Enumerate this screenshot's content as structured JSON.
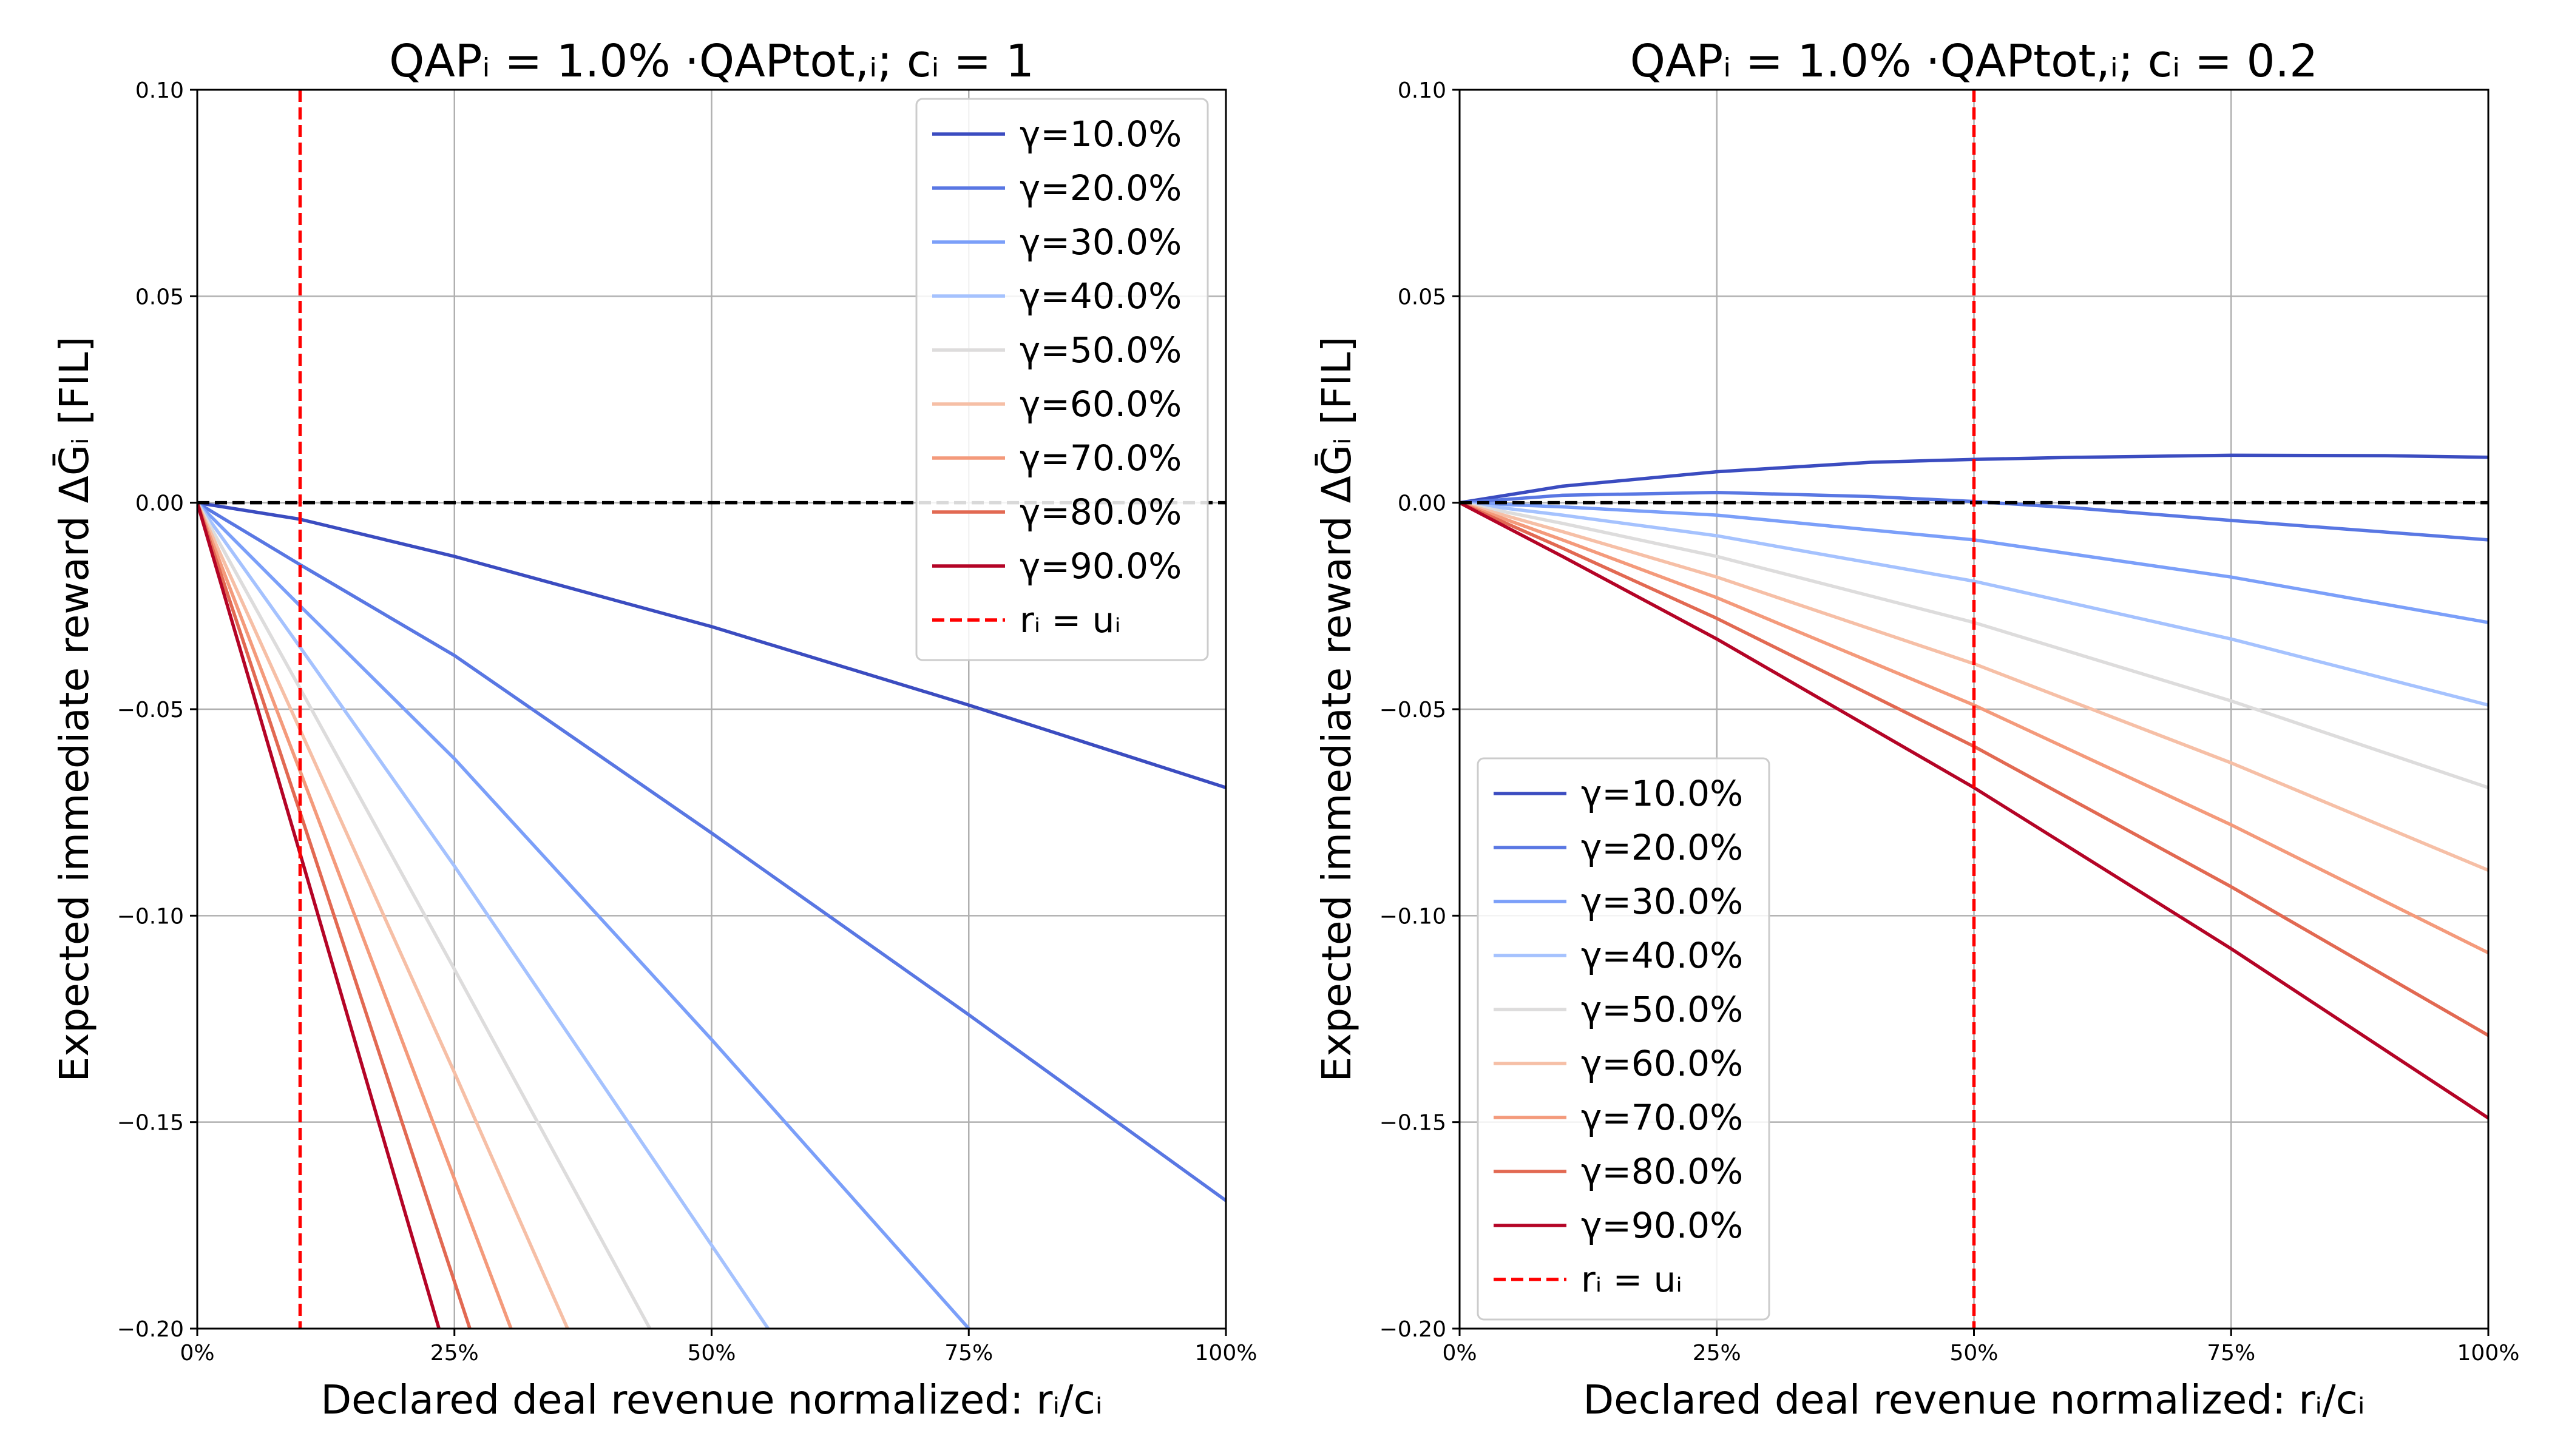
{
  "figure": {
    "background": "#ffffff"
  },
  "chart_data": [
    {
      "type": "line",
      "title": "QAPᵢ = 1.0% ·QAPtot,ᵢ; cᵢ = 1",
      "xlabel": "Declared deal revenue normalized: rᵢ/cᵢ",
      "ylabel": "Expected immediate reward ΔḠᵢ [FIL]",
      "xlim": [
        0,
        100
      ],
      "ylim": [
        -0.2,
        0.1
      ],
      "x_ticks": [
        0,
        25,
        50,
        75,
        100
      ],
      "x_tick_labels": [
        "0%",
        "25%",
        "50%",
        "75%",
        "100%"
      ],
      "y_ticks": [
        -0.2,
        -0.15,
        -0.1,
        -0.05,
        0.0,
        0.05,
        0.1
      ],
      "y_tick_labels": [
        "−0.20",
        "−0.15",
        "−0.10",
        "−0.05",
        "0.00",
        "0.05",
        "0.10"
      ],
      "grid": true,
      "legend_position": "top-right",
      "reference_vertical": {
        "x": 10,
        "label": "rᵢ = uᵢ",
        "color": "#ff0000"
      },
      "reference_horizontal": {
        "y": 0,
        "color": "#000000"
      },
      "series": [
        {
          "name": "γ=10.0%",
          "color": "#3b4cc0",
          "x": [
            0,
            10,
            25,
            50,
            75,
            100
          ],
          "y": [
            0,
            -0.004,
            -0.013,
            -0.03,
            -0.049,
            -0.069
          ]
        },
        {
          "name": "γ=20.0%",
          "color": "#5977e3",
          "x": [
            0,
            10,
            25,
            50,
            75,
            100
          ],
          "y": [
            0,
            -0.015,
            -0.037,
            -0.08,
            -0.124,
            -0.169
          ]
        },
        {
          "name": "γ=30.0%",
          "color": "#7b9ff9",
          "x": [
            0,
            10,
            25,
            50,
            75
          ],
          "y": [
            0,
            -0.025,
            -0.062,
            -0.13,
            -0.2
          ]
        },
        {
          "name": "γ=40.0%",
          "color": "#a5c2fe",
          "x": [
            0,
            10,
            25,
            55.5
          ],
          "y": [
            0,
            -0.035,
            -0.088,
            -0.2
          ]
        },
        {
          "name": "γ=50.0%",
          "color": "#dddcdc",
          "x": [
            0,
            10,
            25,
            44
          ],
          "y": [
            0,
            -0.045,
            -0.113,
            -0.2
          ]
        },
        {
          "name": "γ=60.0%",
          "color": "#f6bfa6",
          "x": [
            0,
            10,
            25,
            36
          ],
          "y": [
            0,
            -0.055,
            -0.138,
            -0.2
          ]
        },
        {
          "name": "γ=70.0%",
          "color": "#f49a7b",
          "x": [
            0,
            10,
            30.5
          ],
          "y": [
            0,
            -0.065,
            -0.2
          ]
        },
        {
          "name": "γ=80.0%",
          "color": "#e26952",
          "x": [
            0,
            10,
            26.5
          ],
          "y": [
            0,
            -0.075,
            -0.2
          ]
        },
        {
          "name": "γ=90.0%",
          "color": "#b40426",
          "x": [
            0,
            10,
            23.5
          ],
          "y": [
            0,
            -0.085,
            -0.2
          ]
        }
      ]
    },
    {
      "type": "line",
      "title": "QAPᵢ = 1.0% ·QAPtot,ᵢ; cᵢ = 0.2",
      "xlabel": "Declared deal revenue normalized: rᵢ/cᵢ",
      "ylabel": "Expected immediate reward ΔḠᵢ [FIL]",
      "xlim": [
        0,
        100
      ],
      "ylim": [
        -0.2,
        0.1
      ],
      "x_ticks": [
        0,
        25,
        50,
        75,
        100
      ],
      "x_tick_labels": [
        "0%",
        "25%",
        "50%",
        "75%",
        "100%"
      ],
      "y_ticks": [
        -0.2,
        -0.15,
        -0.1,
        -0.05,
        0.0,
        0.05,
        0.1
      ],
      "y_tick_labels": [
        "−0.20",
        "−0.15",
        "−0.10",
        "−0.05",
        "0.00",
        "0.05",
        "0.10"
      ],
      "grid": true,
      "legend_position": "bottom-left",
      "reference_vertical": {
        "x": 50,
        "label": "rᵢ = uᵢ",
        "color": "#ff0000"
      },
      "reference_horizontal": {
        "y": 0,
        "color": "#000000"
      },
      "series": [
        {
          "name": "γ=10.0%",
          "color": "#3b4cc0",
          "x": [
            0,
            10,
            25,
            40,
            50,
            60,
            75,
            90,
            100
          ],
          "y": [
            0,
            0.004,
            0.0075,
            0.0098,
            0.0105,
            0.011,
            0.0115,
            0.0114,
            0.011
          ]
        },
        {
          "name": "γ=20.0%",
          "color": "#5977e3",
          "x": [
            0,
            10,
            25,
            40,
            50,
            60,
            75,
            100
          ],
          "y": [
            0,
            0.0018,
            0.0025,
            0.0015,
            0.0003,
            -0.0013,
            -0.0043,
            -0.009
          ]
        },
        {
          "name": "γ=30.0%",
          "color": "#7b9ff9",
          "x": [
            0,
            10,
            25,
            50,
            75,
            100
          ],
          "y": [
            0,
            -0.001,
            -0.003,
            -0.009,
            -0.018,
            -0.029
          ]
        },
        {
          "name": "γ=40.0%",
          "color": "#a5c2fe",
          "x": [
            0,
            10,
            25,
            50,
            75,
            100
          ],
          "y": [
            0,
            -0.003,
            -0.008,
            -0.019,
            -0.033,
            -0.049
          ]
        },
        {
          "name": "γ=50.0%",
          "color": "#dddcdc",
          "x": [
            0,
            10,
            25,
            50,
            75,
            100
          ],
          "y": [
            0,
            -0.005,
            -0.013,
            -0.029,
            -0.048,
            -0.069
          ]
        },
        {
          "name": "γ=60.0%",
          "color": "#f6bfa6",
          "x": [
            0,
            10,
            25,
            50,
            75,
            100
          ],
          "y": [
            0,
            -0.007,
            -0.018,
            -0.039,
            -0.063,
            -0.089
          ]
        },
        {
          "name": "γ=70.0%",
          "color": "#f49a7b",
          "x": [
            0,
            10,
            25,
            50,
            75,
            100
          ],
          "y": [
            0,
            -0.009,
            -0.023,
            -0.049,
            -0.078,
            -0.109
          ]
        },
        {
          "name": "γ=80.0%",
          "color": "#e26952",
          "x": [
            0,
            10,
            25,
            50,
            75,
            100
          ],
          "y": [
            0,
            -0.011,
            -0.028,
            -0.059,
            -0.093,
            -0.129
          ]
        },
        {
          "name": "γ=90.0%",
          "color": "#b40426",
          "x": [
            0,
            10,
            25,
            50,
            75,
            100
          ],
          "y": [
            0,
            -0.013,
            -0.033,
            -0.069,
            -0.108,
            -0.149
          ]
        }
      ]
    }
  ]
}
